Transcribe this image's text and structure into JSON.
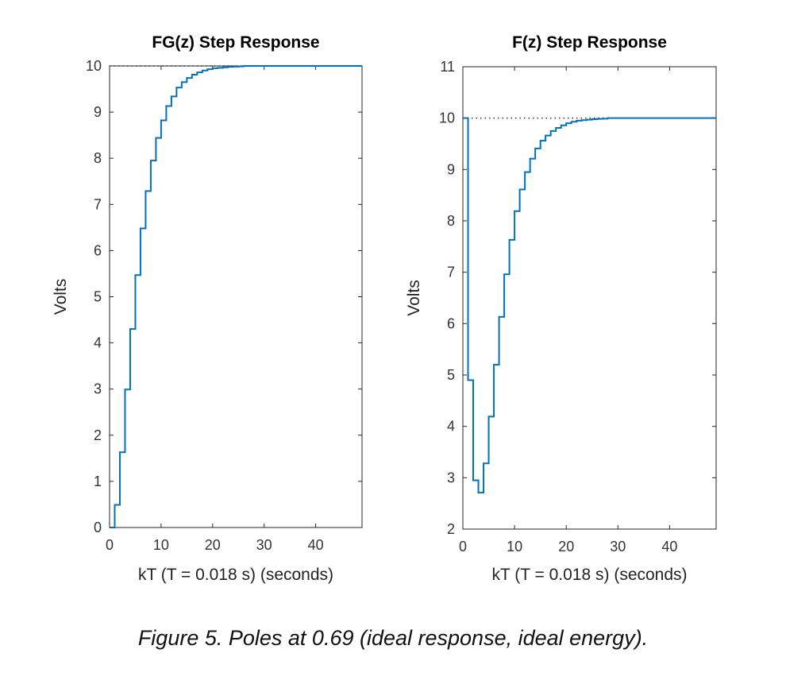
{
  "chart_data": [
    {
      "type": "line",
      "title": "FG(z) Step Response",
      "xlabel": "kT (T = 0.018 s) (seconds)",
      "ylabel": "Volts",
      "xlim": [
        0,
        49
      ],
      "ylim": [
        0,
        10
      ],
      "xticks": [
        0,
        10,
        20,
        30,
        40
      ],
      "yticks": [
        0,
        1,
        2,
        3,
        4,
        5,
        6,
        7,
        8,
        9,
        10
      ],
      "reference_level": 10,
      "step_values": [
        0,
        0.49,
        1.63,
        2.99,
        4.3,
        5.47,
        6.48,
        7.29,
        7.95,
        8.44,
        8.82,
        9.13,
        9.34,
        9.53,
        9.65,
        9.74,
        9.81,
        9.86,
        9.9,
        9.93,
        9.95,
        9.96,
        9.97,
        9.98,
        9.985,
        9.99,
        10,
        10,
        10,
        10,
        10,
        10,
        10,
        10,
        10,
        10,
        10,
        10,
        10,
        10,
        10,
        10,
        10,
        10,
        10,
        10,
        10,
        10,
        10,
        10
      ],
      "color": "#0072bd"
    },
    {
      "type": "line",
      "title": "F(z) Step Response",
      "xlabel": "kT (T = 0.018 s) (seconds)",
      "ylabel": "Volts",
      "xlim": [
        0,
        49
      ],
      "ylim": [
        2,
        11
      ],
      "xticks": [
        0,
        10,
        20,
        30,
        40
      ],
      "yticks": [
        2,
        3,
        4,
        5,
        6,
        7,
        8,
        9,
        10,
        11
      ],
      "reference_level": 10,
      "step_values": [
        10,
        4.9,
        2.95,
        2.71,
        3.28,
        4.19,
        5.2,
        6.13,
        6.96,
        7.63,
        8.19,
        8.61,
        8.95,
        9.21,
        9.41,
        9.56,
        9.66,
        9.75,
        9.81,
        9.86,
        9.9,
        9.93,
        9.95,
        9.96,
        9.97,
        9.98,
        9.985,
        9.99,
        10,
        10,
        10,
        10,
        10,
        10,
        10,
        10,
        10,
        10,
        10,
        10,
        10,
        10,
        10,
        10,
        10,
        10,
        10,
        10,
        10,
        10
      ],
      "color": "#0072bd"
    }
  ],
  "caption": "Figure 5. Poles at 0.69 (ideal response, ideal energy)."
}
